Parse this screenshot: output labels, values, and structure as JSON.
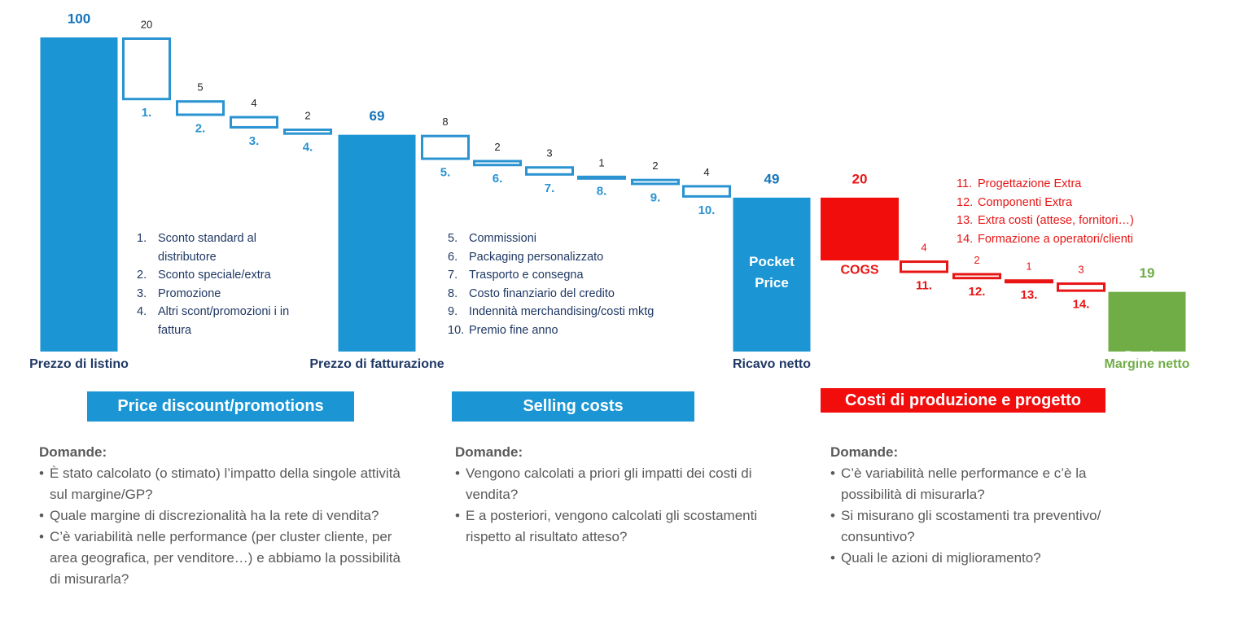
{
  "chart_data": {
    "type": "waterfall",
    "categories": [
      "Prezzo di listino",
      "1.",
      "2.",
      "3.",
      "4.",
      "Prezzo di fatturazione",
      "5.",
      "6.",
      "7.",
      "8.",
      "9.",
      "10.",
      "Ricavo netto",
      "COGS",
      "11.",
      "12.",
      "13.",
      "14.",
      "Margine netto"
    ],
    "values": [
      100,
      20,
      5,
      4,
      2,
      69,
      8,
      2,
      3,
      1,
      2,
      4,
      49,
      20,
      4,
      2,
      1,
      3,
      19
    ],
    "kinds": [
      "total",
      "decrease",
      "decrease",
      "decrease",
      "decrease",
      "total",
      "decrease",
      "decrease",
      "decrease",
      "decrease",
      "decrease",
      "decrease",
      "total",
      "decrease-solid",
      "decrease",
      "decrease",
      "decrease",
      "decrease",
      "total"
    ],
    "colors": [
      "#1b95d3",
      "#2a93d1",
      "#2a93d1",
      "#2a93d1",
      "#2a93d1",
      "#1b95d3",
      "#2a93d1",
      "#2a93d1",
      "#2a93d1",
      "#2a93d1",
      "#2a93d1",
      "#2a93d1",
      "#1b95d3",
      "#f20d0d",
      "#e81515",
      "#e81515",
      "#e81515",
      "#e81515",
      "#70ad47"
    ],
    "value_label_colors": [
      "#1574bb",
      "#222222",
      "#222222",
      "#222222",
      "#222222",
      "#1574bb",
      "#222222",
      "#222222",
      "#222222",
      "#222222",
      "#222222",
      "#222222",
      "#1574bb",
      "#e81515",
      "#e81515",
      "#e81515",
      "#e81515",
      "#e81515",
      "#70ad47"
    ],
    "category_colors": [
      "#1f3864",
      "#2a93d1",
      "#2a93d1",
      "#2a93d1",
      "#2a93d1",
      "#1f3864",
      "#2a93d1",
      "#2a93d1",
      "#2a93d1",
      "#2a93d1",
      "#2a93d1",
      "#2a93d1",
      "#1f3864",
      "#e81515",
      "#e81515",
      "#e81515",
      "#e81515",
      "#e81515",
      "#70ad47"
    ],
    "inner_labels": [
      null,
      null,
      null,
      null,
      null,
      null,
      null,
      null,
      null,
      null,
      null,
      null,
      "Pocket Price",
      null,
      null,
      null,
      null,
      null,
      "Pocket Margin"
    ],
    "ylim": [
      0,
      100
    ]
  },
  "lists": [
    {
      "items": [
        {
          "num": "1.",
          "text": "Sconto standard al distributore"
        },
        {
          "num": "2.",
          "text": "Sconto speciale/extra"
        },
        {
          "num": "3.",
          "text": "Promozione"
        },
        {
          "num": "4.",
          "text": "Altri scont/promozioni i in fattura"
        }
      ]
    },
    {
      "items": [
        {
          "num": "5.",
          "text": "Commissioni"
        },
        {
          "num": "6.",
          "text": "Packaging personalizzato"
        },
        {
          "num": "7.",
          "text": "Trasporto e consegna"
        },
        {
          "num": "8.",
          "text": "Costo finanziario del credito"
        },
        {
          "num": "9.",
          "text": "Indennità merchandising/costi mktg"
        },
        {
          "num": "10.",
          "text": "Premio fine anno"
        }
      ]
    },
    {
      "items": [
        {
          "num": "11.",
          "text": "Progettazione Extra"
        },
        {
          "num": "12.",
          "text": "Componenti Extra"
        },
        {
          "num": "13.",
          "text": "Extra costi (attese, fornitori…)"
        },
        {
          "num": "14.",
          "text": "Formazione a operatori/clienti"
        }
      ]
    }
  ],
  "sections": [
    {
      "title": "Price discount/promotions",
      "heading": "Domande:",
      "questions": [
        "È stato calcolato (o stimato) l’impatto della singole attività sul margine/GP?",
        "Quale margine di discrezionalità ha la rete di vendita?",
        "C’è variabilità nelle performance (per cluster cliente, per area geografica, per venditore…) e abbiamo la possibilità di misurarla?"
      ]
    },
    {
      "title": "Selling costs",
      "heading": "Domande:",
      "questions": [
        "Vengono calcolati a priori gli impatti dei costi di vendita?",
        "E a posteriori, vengono calcolati gli scostamenti rispetto al risultato atteso?"
      ]
    },
    {
      "title": "Costi di produzione e progetto",
      "heading": "Domande:",
      "questions": [
        "C’è variabilità nelle performance e c’è la possibilità di misurarla?",
        "Si misurano gli scostamenti tra preventivo/ consuntivo?",
        "Quali le azioni di miglioramento?"
      ]
    }
  ]
}
